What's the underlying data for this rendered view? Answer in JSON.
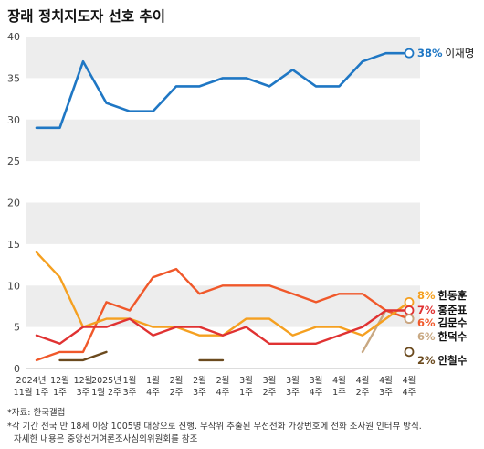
{
  "chart_data": {
    "type": "line",
    "title": "장래 정치지도자 선호 추이",
    "x": [
      [
        "2024년",
        "11월 1주"
      ],
      [
        "12월",
        "1주"
      ],
      [
        "12월",
        "3주"
      ],
      [
        "2025년",
        "1월 2주"
      ],
      [
        "1월",
        "3주"
      ],
      [
        "1월",
        "4주"
      ],
      [
        "2월",
        "2주"
      ],
      [
        "2월",
        "3주"
      ],
      [
        "2월",
        "4주"
      ],
      [
        "3월",
        "1주"
      ],
      [
        "3월",
        "2주"
      ],
      [
        "3월",
        "3주"
      ],
      [
        "3월",
        "4주"
      ],
      [
        "4월",
        "1주"
      ],
      [
        "4월",
        "2주"
      ],
      [
        "4월",
        "3주"
      ],
      [
        "4월",
        "4주"
      ]
    ],
    "ylim": [
      0,
      40
    ],
    "yticks": [
      "0",
      "5",
      "10",
      "15",
      "20",
      "25",
      "30",
      "35",
      "40"
    ],
    "series": [
      {
        "name": "이재명",
        "label_pct": "38%",
        "color": "#1f77c4",
        "values": [
          29,
          29,
          37,
          32,
          31,
          31,
          34,
          34,
          35,
          35,
          34,
          36,
          34,
          34,
          37,
          38,
          38
        ]
      },
      {
        "name": "한동훈",
        "label_pct": "8%",
        "color": "#f5a020",
        "values": [
          14,
          11,
          5,
          6,
          6,
          5,
          5,
          4,
          4,
          6,
          6,
          4,
          5,
          5,
          4,
          6,
          8
        ]
      },
      {
        "name": "홍준표",
        "label_pct": "7%",
        "color": "#e03232",
        "values": [
          4,
          3,
          5,
          5,
          6,
          4,
          5,
          5,
          4,
          5,
          3,
          3,
          3,
          4,
          5,
          7,
          7
        ]
      },
      {
        "name": "김문수",
        "label_pct": "6%",
        "color": "#f0582a",
        "values": [
          1,
          2,
          2,
          8,
          7,
          11,
          12,
          9,
          10,
          10,
          10,
          9,
          8,
          9,
          9,
          7,
          6
        ]
      },
      {
        "name": "한덕수",
        "label_pct": "6%",
        "color": "#c8a882",
        "values": [
          null,
          null,
          null,
          null,
          null,
          null,
          null,
          null,
          null,
          null,
          null,
          null,
          null,
          null,
          2,
          7,
          6
        ]
      },
      {
        "name": "안철수",
        "label_pct": "2%",
        "color": "#6b4a1e",
        "values": [
          null,
          1,
          1,
          2,
          null,
          null,
          null,
          1,
          1,
          null,
          null,
          null,
          null,
          null,
          null,
          null,
          2
        ]
      }
    ]
  },
  "footnotes": {
    "source": "*자료: 한국갤럽",
    "note1": "*각 기간 전국 만 18세 이상 1005명 대상으로 진행. 무작위 추출된 무선전화 가상번호에 전화 조사원 인터뷰 방식.",
    "note2": "자세한 내용은 중앙선거여론조사심의위원회를 참조"
  }
}
